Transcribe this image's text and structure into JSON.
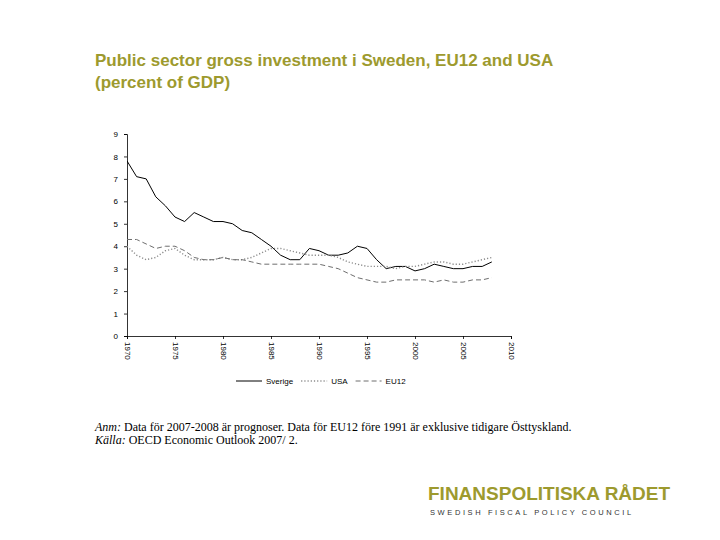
{
  "chart_data": {
    "type": "line",
    "title": "Public sector gross investment i Sweden, EU12 and USA (percent of GDP)",
    "x": [
      1970,
      1971,
      1972,
      1973,
      1974,
      1975,
      1976,
      1977,
      1978,
      1979,
      1980,
      1981,
      1982,
      1983,
      1984,
      1985,
      1986,
      1987,
      1988,
      1989,
      1990,
      1991,
      1992,
      1993,
      1994,
      1995,
      1996,
      1997,
      1998,
      1999,
      2000,
      2001,
      2002,
      2003,
      2004,
      2005,
      2006,
      2007,
      2008
    ],
    "series": [
      {
        "name": "Sverige",
        "color": "#000000",
        "line_style": "solid",
        "values": [
          7.8,
          7.1,
          7.0,
          6.2,
          5.8,
          5.3,
          5.1,
          5.5,
          5.3,
          5.1,
          5.1,
          5.0,
          4.7,
          4.6,
          4.3,
          4.0,
          3.6,
          3.4,
          3.4,
          3.9,
          3.8,
          3.6,
          3.6,
          3.7,
          4.0,
          3.9,
          3.4,
          3.0,
          3.1,
          3.1,
          2.9,
          3.0,
          3.2,
          3.1,
          3.0,
          3.0,
          3.1,
          3.1,
          3.3
        ]
      },
      {
        "name": "USA",
        "color": "#8c8c8c",
        "line_style": "dotted",
        "values": [
          4.0,
          3.6,
          3.4,
          3.5,
          3.8,
          3.9,
          3.6,
          3.4,
          3.4,
          3.4,
          3.5,
          3.4,
          3.4,
          3.5,
          3.7,
          3.9,
          3.9,
          3.8,
          3.7,
          3.6,
          3.6,
          3.6,
          3.5,
          3.3,
          3.2,
          3.1,
          3.1,
          3.1,
          3.0,
          3.1,
          3.1,
          3.2,
          3.3,
          3.3,
          3.2,
          3.2,
          3.3,
          3.4,
          3.5
        ]
      },
      {
        "name": "EU12",
        "color": "#6e6e6e",
        "line_style": "dashed",
        "values": [
          4.3,
          4.3,
          4.1,
          3.9,
          4.0,
          4.0,
          3.8,
          3.5,
          3.4,
          3.4,
          3.5,
          3.4,
          3.4,
          3.3,
          3.2,
          3.2,
          3.2,
          3.2,
          3.2,
          3.2,
          3.2,
          3.1,
          3.0,
          2.8,
          2.6,
          2.5,
          2.4,
          2.4,
          2.5,
          2.5,
          2.5,
          2.5,
          2.4,
          2.5,
          2.4,
          2.4,
          2.5,
          2.5,
          2.6
        ]
      }
    ],
    "xlim": [
      1970,
      2010
    ],
    "xticks": [
      1970,
      1975,
      1980,
      1985,
      1990,
      1995,
      2000,
      2005,
      2010
    ],
    "ylim": [
      0,
      9
    ],
    "yticks": [
      0,
      1,
      2,
      3,
      4,
      5,
      6,
      7,
      8,
      9
    ],
    "grid": false,
    "legend": "bottom",
    "annotations": [
      {
        "lead": "Anm:",
        "text": "Data för 2007-2008 är prognoser. Data för EU12 före 1991 är exklusive tidigare Östtyskland."
      },
      {
        "lead": "Källa:",
        "text": "OECD Economic Outlook 2007/ 2."
      }
    ]
  },
  "footer": {
    "logo": "FINANSPOLITISKA RÅDET",
    "logo_subtitle": "SWEDISH FISCAL POLICY COUNCIL"
  }
}
